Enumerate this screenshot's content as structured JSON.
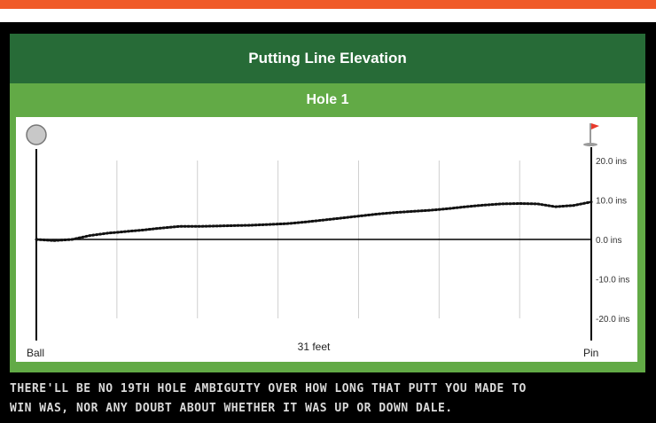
{
  "colors": {
    "accent_stripe": "#f05a28",
    "title_bar": "#276b37",
    "panel": "#62aa46",
    "flag": "#e8392b"
  },
  "header": {
    "title": "Putting Line Elevation"
  },
  "panel": {
    "hole_label": "Hole 1"
  },
  "chart_data": {
    "type": "line",
    "title": "",
    "xlabel": "31 feet",
    "x_end_labels": {
      "left": "Ball",
      "right": "Pin"
    },
    "ylabel": "",
    "y_unit": "ins",
    "ylim": [
      -20,
      20
    ],
    "y_ticks": [
      20,
      10,
      0,
      -10,
      -20
    ],
    "y_tick_labels": [
      "20.0 ins",
      "10.0 ins",
      "0.0 ins",
      "-10.0 ins",
      "-20.0 ins"
    ],
    "x_range": [
      0,
      31
    ],
    "grid_x": [
      4.5,
      9.0,
      13.5,
      18.0,
      22.5,
      27.0
    ],
    "grid": true,
    "line_style": "dotted",
    "ball_icon": "ball-icon",
    "pin_icon": "flag-icon",
    "series": [
      {
        "x": [
          0,
          1,
          2,
          3,
          4,
          5,
          6,
          7,
          8,
          9,
          10,
          11,
          12,
          13,
          14,
          15,
          16,
          17,
          18,
          19,
          20,
          21,
          22,
          23,
          24,
          25,
          26,
          27,
          28,
          29,
          30,
          31
        ],
        "values": [
          0.0,
          -0.3,
          0.0,
          1.0,
          1.6,
          2.0,
          2.4,
          2.9,
          3.3,
          3.3,
          3.4,
          3.5,
          3.6,
          3.8,
          4.0,
          4.4,
          4.9,
          5.4,
          5.9,
          6.4,
          6.8,
          7.1,
          7.4,
          7.8,
          8.3,
          8.7,
          9.0,
          9.1,
          9.0,
          8.3,
          8.6,
          9.5
        ]
      }
    ]
  },
  "caption": {
    "line1": "There'll be no 19th hole ambiguity over how long that putt you made to",
    "line2": "win was, nor any doubt about whether it was up or down dale."
  }
}
